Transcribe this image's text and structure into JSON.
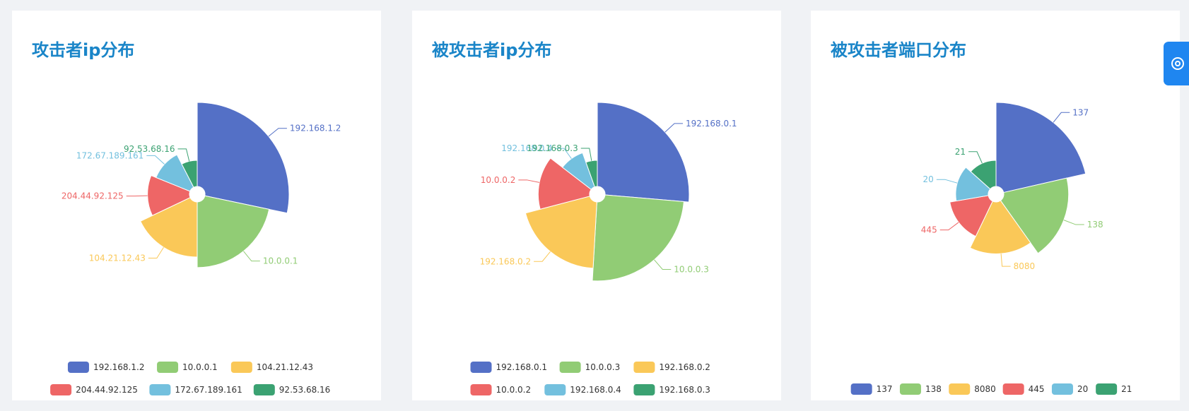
{
  "colors": [
    "#5470c6",
    "#91cc75",
    "#fac858",
    "#ee6666",
    "#73c0de",
    "#3ba272"
  ],
  "float_button": {
    "icon": "gear-icon"
  },
  "chart_data": [
    {
      "type": "pie",
      "rose": "radius",
      "title": "攻击者ip分布",
      "legend_position": "bottom",
      "categories": [
        "192.168.1.2",
        "10.0.0.1",
        "104.21.12.43",
        "204.44.92.125",
        "172.67.189.161",
        "92.53.68.16"
      ],
      "values": [
        30,
        23,
        19,
        14,
        12,
        8
      ]
    },
    {
      "type": "pie",
      "rose": "radius",
      "title": "被攻击者ip分布",
      "legend_position": "bottom",
      "categories": [
        "192.168.0.1",
        "10.0.0.3",
        "192.168.0.2",
        "10.0.0.2",
        "192.168.0.4",
        "192.168.0.3"
      ],
      "values": [
        29,
        27,
        22,
        16,
        10,
        6
      ]
    },
    {
      "type": "pie",
      "rose": "radius",
      "title": "被攻击者端口分布",
      "legend_position": "bottom",
      "categories": [
        "137",
        "138",
        "8080",
        "445",
        "20",
        "21"
      ],
      "values": [
        24,
        21,
        19,
        17,
        16,
        15
      ]
    }
  ]
}
